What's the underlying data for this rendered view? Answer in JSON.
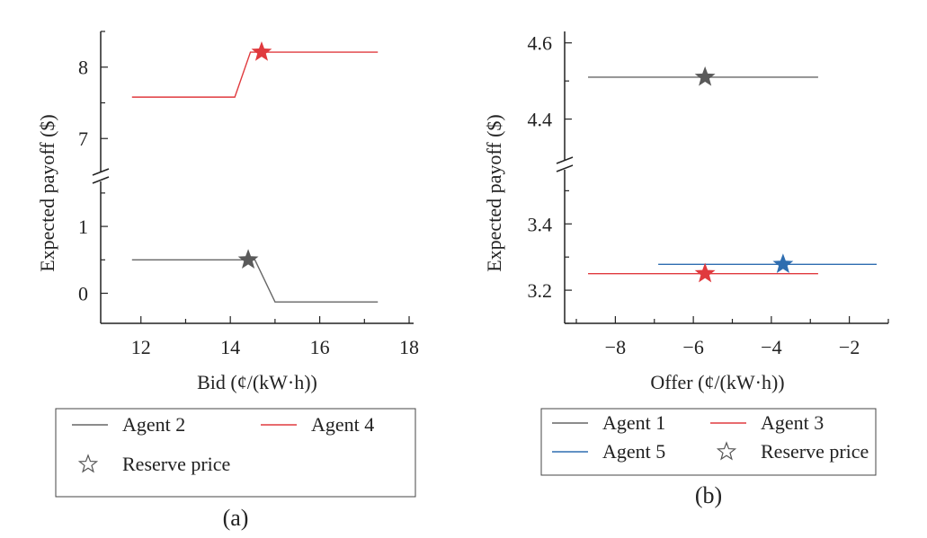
{
  "chart_data": [
    {
      "type": "line",
      "panel_label": "(a)",
      "xlabel": "Bid (¢/(kW·h))",
      "ylabel": "Expected payoff ($)",
      "x_ticks": [
        "12",
        "14",
        "16",
        "18"
      ],
      "y_ticks_lower": [
        "0",
        "1"
      ],
      "y_ticks_upper": [
        "7",
        "8"
      ],
      "xlim": [
        11.1,
        18.1
      ],
      "ylim_lower": [
        -0.45,
        1.7
      ],
      "ylim_upper": [
        6.55,
        8.5
      ],
      "axis_break": true,
      "series": [
        {
          "name": "Agent 2",
          "color": "#666666",
          "points": [
            [
              11.8,
              0.5
            ],
            [
              14.55,
              0.5
            ],
            [
              15.0,
              -0.13
            ],
            [
              17.3,
              -0.13
            ]
          ],
          "marker": {
            "x": 14.4,
            "y": 0.5
          }
        },
        {
          "name": "Agent 4",
          "color": "#e03a3e",
          "points": [
            [
              11.8,
              7.58
            ],
            [
              14.1,
              7.58
            ],
            [
              14.45,
              8.21
            ],
            [
              17.3,
              8.21
            ]
          ],
          "marker": {
            "x": 14.7,
            "y": 8.21
          }
        }
      ],
      "legend": {
        "placement": "bottom",
        "entries": [
          {
            "label": "Agent 2",
            "kind": "line",
            "color": "#666666"
          },
          {
            "label": "Agent 4",
            "kind": "line",
            "color": "#e03a3e"
          },
          {
            "label": "Reserve price",
            "kind": "star"
          }
        ]
      }
    },
    {
      "type": "line",
      "panel_label": "(b)",
      "xlabel": "Offer (¢/(kW·h))",
      "ylabel": "Expected payoff ($)",
      "x_ticks": [
        "−8",
        "−6",
        "−4",
        "−2"
      ],
      "y_ticks_lower": [
        "3.2",
        "3.4"
      ],
      "y_ticks_upper": [
        "4.4",
        "4.6"
      ],
      "xlim": [
        -9.3,
        -1.0
      ],
      "ylim_lower": [
        3.1,
        3.52
      ],
      "ylim_upper": [
        4.3,
        4.63
      ],
      "axis_break": true,
      "series": [
        {
          "name": "Agent 1",
          "color": "#666666",
          "points": [
            [
              -8.7,
              4.51
            ],
            [
              -2.8,
              4.51
            ]
          ],
          "marker": {
            "x": -5.7,
            "y": 4.51
          }
        },
        {
          "name": "Agent 3",
          "color": "#e03a3e",
          "points": [
            [
              -8.7,
              3.25
            ],
            [
              -2.8,
              3.25
            ]
          ],
          "marker": {
            "x": -5.7,
            "y": 3.25
          }
        },
        {
          "name": "Agent 5",
          "color": "#2e6db0",
          "points": [
            [
              -6.9,
              3.278
            ],
            [
              -1.3,
              3.278
            ]
          ],
          "marker": {
            "x": -3.7,
            "y": 3.278
          }
        }
      ],
      "legend": {
        "placement": "bottom",
        "entries": [
          {
            "label": "Agent 1",
            "kind": "line",
            "color": "#666666"
          },
          {
            "label": "Agent 3",
            "kind": "line",
            "color": "#e03a3e"
          },
          {
            "label": "Agent 5",
            "kind": "line",
            "color": "#2e6db0"
          },
          {
            "label": "Reserve price",
            "kind": "star"
          }
        ]
      }
    }
  ]
}
